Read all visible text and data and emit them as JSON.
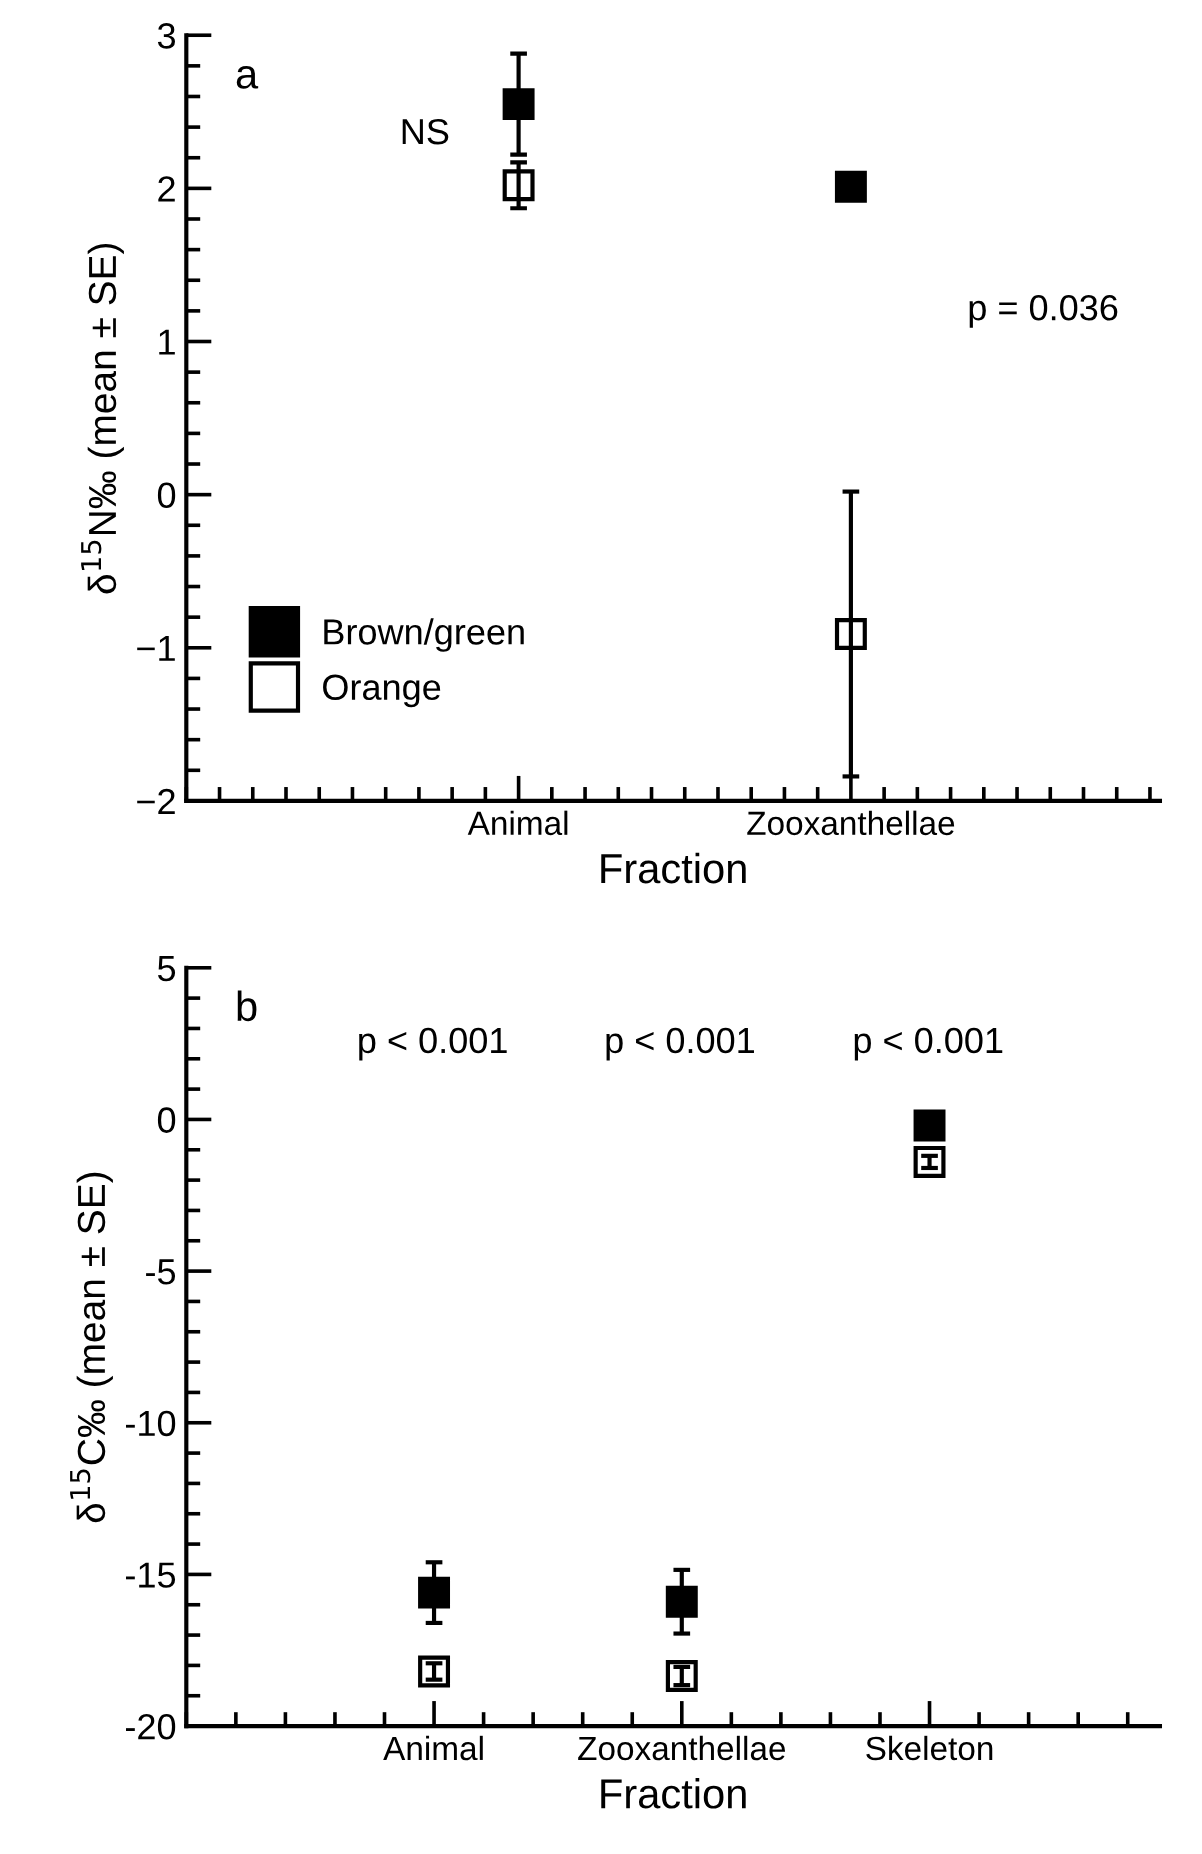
{
  "chart_data": [
    {
      "type": "scatter",
      "title": "a",
      "xlabel": "Fraction",
      "ylabel": "δ$^{15}$N‰ (mean ± SE)",
      "categories": [
        "Animal",
        "Zooxanthellae"
      ],
      "ylim": [
        -2,
        3
      ],
      "yticks": [
        {
          "value": -2,
          "label": "−2"
        },
        {
          "value": -1,
          "label": "−1"
        },
        0,
        1,
        2,
        3
      ],
      "marker": "square",
      "legend": "bottom left",
      "grid": false,
      "series": [
        {
          "name": "Brown/green",
          "color": "#000000",
          "values": [
            2.55,
            2.01
          ],
          "errors": [
            0.33,
            null
          ]
        },
        {
          "name": "Orange",
          "color": "#ffffff",
          "values": [
            2.02,
            -0.91
          ],
          "errors": [
            0.15,
            0.93
          ]
        }
      ],
      "annotations": [
        "NS",
        "p = 0.036"
      ]
    },
    {
      "type": "scatter",
      "title": "b",
      "xlabel": "Fraction",
      "ylabel": "δ$^{15}$C‰ (mean ± SE)",
      "categories": [
        "Animal",
        "Zooxanthellae",
        "Skeleton"
      ],
      "ylim": [
        -20,
        5
      ],
      "yticks": [
        -20,
        -15,
        -10,
        -5,
        0,
        5
      ],
      "marker": "square",
      "grid": false,
      "series": [
        {
          "color": "#000000",
          "values": [
            -15.6,
            -15.9,
            -0.2
          ],
          "errors": [
            1.0,
            1.05,
            0.1
          ]
        },
        {
          "color": "#ffffff",
          "values": [
            -18.2,
            -18.35,
            -1.4
          ],
          "errors": [
            0.27,
            0.3,
            0.2
          ]
        }
      ],
      "annotations": [
        "p < 0.001",
        "p < 0.001",
        "p < 0.001"
      ]
    }
  ]
}
